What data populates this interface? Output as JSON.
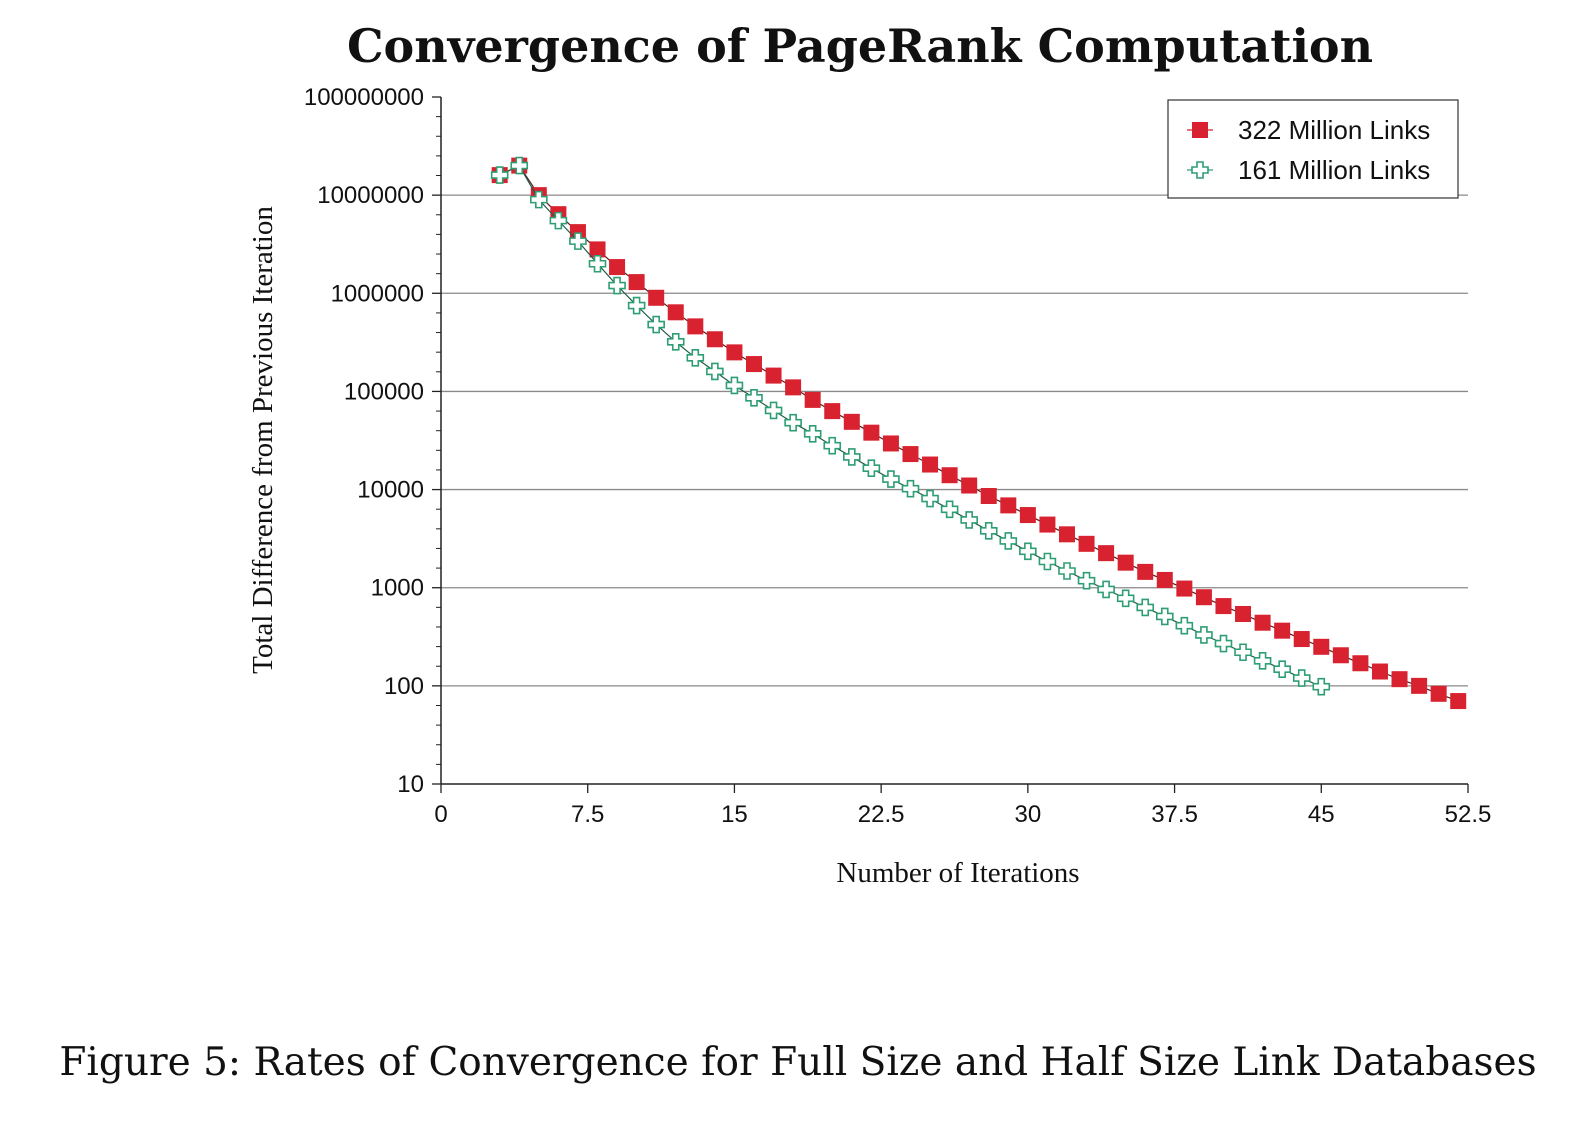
{
  "chart_data": {
    "type": "line",
    "title": "Convergence of PageRank Computation",
    "xlabel": "Number of Iterations",
    "ylabel": "Total Difference from Previous Iteration",
    "y_scale": "log",
    "xlim": [
      0,
      52.5
    ],
    "ylim": [
      10,
      100000000
    ],
    "x_ticks": [
      "0",
      "7.5",
      "15",
      "22.5",
      "30",
      "37.5",
      "45",
      "52.5"
    ],
    "y_ticks": [
      "10",
      "100",
      "1000",
      "10000",
      "100000",
      "1000000",
      "10000000",
      "100000000"
    ],
    "grid": "horizontal",
    "legend": "top-right",
    "series": [
      {
        "name": "322 Million Links",
        "color": "#d8222f",
        "marker": "filled-square",
        "x": [
          3,
          4,
          5,
          6,
          7,
          8,
          9,
          10,
          11,
          12,
          13,
          14,
          15,
          16,
          17,
          18,
          19,
          20,
          21,
          22,
          23,
          24,
          25,
          26,
          27,
          28,
          29,
          30,
          31,
          32,
          33,
          34,
          35,
          36,
          37,
          38,
          39,
          40,
          41,
          42,
          43,
          44,
          45,
          46,
          47,
          48,
          49,
          50,
          51,
          52
        ],
        "y": [
          16000000,
          20000000,
          10000000,
          6400000,
          4200000,
          2800000,
          1850000,
          1300000,
          900000,
          640000,
          460000,
          340000,
          250000,
          190000,
          145000,
          110000,
          82000,
          63000,
          49000,
          38000,
          29500,
          23000,
          18000,
          14000,
          11000,
          8600,
          6900,
          5500,
          4400,
          3500,
          2800,
          2250,
          1800,
          1450,
          1200,
          980,
          800,
          650,
          540,
          440,
          365,
          300,
          250,
          205,
          170,
          140,
          117,
          100,
          83,
          70
        ]
      },
      {
        "name": "161 Million Links",
        "color": "#2e9e74",
        "marker": "hollow-cross",
        "x": [
          3,
          4,
          5,
          6,
          7,
          8,
          9,
          10,
          11,
          12,
          13,
          14,
          15,
          16,
          17,
          18,
          19,
          20,
          21,
          22,
          23,
          24,
          25,
          26,
          27,
          28,
          29,
          30,
          31,
          32,
          33,
          34,
          35,
          36,
          37,
          38,
          39,
          40,
          41,
          42,
          43,
          44,
          45
        ],
        "y": [
          16000000,
          20000000,
          9000000,
          5500000,
          3400000,
          2000000,
          1200000,
          750000,
          480000,
          320000,
          220000,
          160000,
          115000,
          86000,
          64000,
          48000,
          37000,
          28000,
          21500,
          16500,
          12800,
          10200,
          8100,
          6300,
          4900,
          3800,
          3000,
          2350,
          1850,
          1480,
          1180,
          960,
          780,
          630,
          510,
          410,
          330,
          270,
          220,
          180,
          148,
          120,
          98
        ]
      }
    ]
  },
  "caption": "Figure 5: Rates of Convergence for Full Size and Half Size Link Databases"
}
